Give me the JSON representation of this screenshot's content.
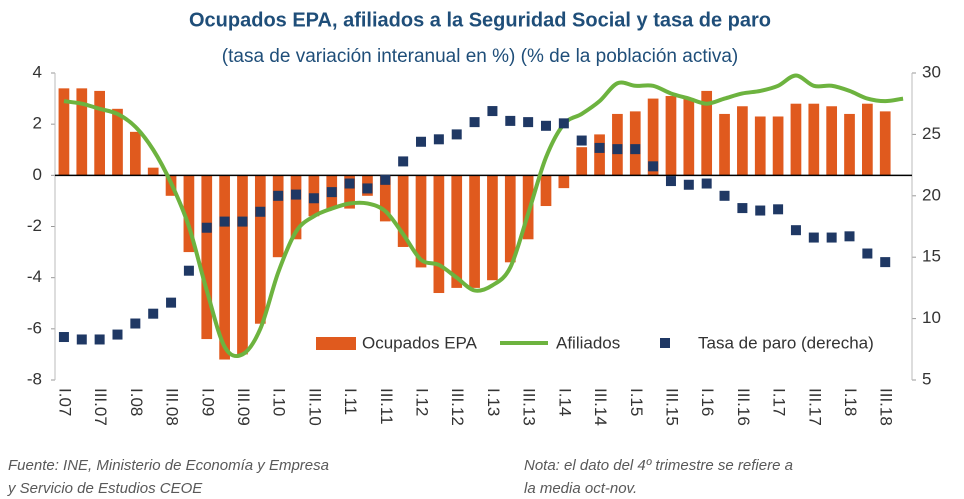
{
  "chart_data": {
    "type": "bar_line_scatter",
    "title": "Ocupados EPA, afiliados a la Seguridad Social y tasa de paro",
    "subtitle": "(tasa de variación interanual en %) (% de la población activa)",
    "categories": [
      "I.07",
      null,
      "III.07",
      null,
      "I.08",
      null,
      "III.08",
      null,
      "I.09",
      null,
      "III.09",
      null,
      "I.10",
      null,
      "III.10",
      null,
      "I.11",
      null,
      "III.11",
      null,
      "I.12",
      null,
      "III.12",
      null,
      "I.13",
      null,
      "III.13",
      null,
      "I.14",
      null,
      "III.14",
      null,
      "I.15",
      null,
      "III.15",
      null,
      "I.16",
      null,
      "III.16",
      null,
      "I.17",
      null,
      "III.17",
      null,
      "I.18",
      null,
      "III.18",
      null
    ],
    "series": [
      {
        "name": "Ocupados EPA",
        "kind": "bar",
        "color": "#E05A1E",
        "values": [
          3.4,
          3.4,
          3.3,
          2.6,
          1.7,
          0.3,
          -0.8,
          -3.0,
          -6.4,
          -7.2,
          -7.0,
          -5.8,
          -3.2,
          -2.5,
          -1.6,
          -1.3,
          -1.3,
          -0.8,
          -1.8,
          -2.8,
          -3.6,
          -4.6,
          -4.4,
          -4.4,
          -4.1,
          -3.4,
          -2.5,
          -1.2,
          -0.5,
          1.1,
          1.6,
          2.4,
          2.5,
          3.0,
          3.1,
          3.0,
          3.3,
          2.4,
          2.7,
          2.3,
          2.3,
          2.8,
          2.8,
          2.7,
          2.4,
          2.8,
          2.5,
          null
        ]
      },
      {
        "name": "Afiliados",
        "kind": "line",
        "color": "#6DB33F",
        "values": [
          2.9,
          2.8,
          2.6,
          2.4,
          1.9,
          1.0,
          -0.3,
          -2.0,
          -4.5,
          -6.7,
          -7.0,
          -6.0,
          -3.8,
          -2.2,
          -1.6,
          -1.3,
          -1.1,
          -1.1,
          -1.4,
          -2.3,
          -3.3,
          -3.5,
          -4.0,
          -4.5,
          -4.3,
          -3.6,
          -1.5,
          0.7,
          2.0,
          2.4,
          2.9,
          3.6,
          3.5,
          3.5,
          3.2,
          3.0,
          2.8,
          3.0,
          3.2,
          3.3,
          3.5,
          3.9,
          3.5,
          3.5,
          3.3,
          3.0,
          2.9,
          3.0
        ]
      },
      {
        "name": "Tasa de paro (derecha)",
        "kind": "scatter",
        "axis": "y2",
        "color": "#1F3864",
        "values": [
          8.5,
          8.3,
          8.3,
          8.7,
          9.6,
          10.4,
          11.3,
          13.9,
          17.4,
          17.9,
          17.9,
          18.7,
          20.0,
          20.1,
          19.8,
          20.3,
          21.0,
          20.6,
          21.3,
          22.8,
          24.4,
          24.6,
          25.0,
          26.0,
          26.9,
          26.1,
          26.0,
          25.7,
          25.9,
          24.5,
          23.9,
          23.8,
          23.8,
          22.4,
          21.2,
          20.9,
          21.0,
          20.0,
          19.0,
          18.8,
          18.9,
          17.2,
          16.6,
          16.6,
          16.7,
          15.3,
          14.6,
          null
        ]
      }
    ],
    "ylim": [
      -8,
      4
    ],
    "yticks": [
      -8,
      -6,
      -4,
      -2,
      0,
      2,
      4
    ],
    "y2lim": [
      5,
      30
    ],
    "y2ticks": [
      5,
      10,
      15,
      20,
      25,
      30
    ],
    "grid": false,
    "source": [
      "Fuente: INE, Ministerio de Economía y Empresa",
      "y Servicio de Estudios CEOE"
    ],
    "note": [
      "Nota: el dato del 4º trimestre se refiere a",
      "la media oct-nov."
    ]
  }
}
